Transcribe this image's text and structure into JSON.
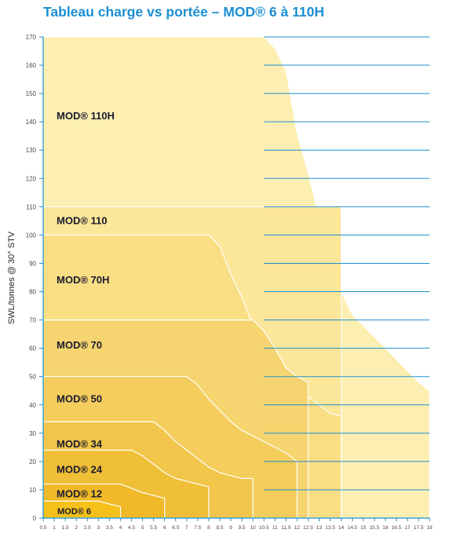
{
  "title": "Tableau charge vs portée – MOD® 6 à 110H",
  "chart_data": {
    "type": "area",
    "ylabel": "SWL/tonnes @ 30° STV",
    "xlabel": "",
    "xlim": [
      0.5,
      18
    ],
    "ylim": [
      0,
      170
    ],
    "y_ticks": [
      0,
      10,
      20,
      30,
      40,
      50,
      60,
      70,
      80,
      90,
      100,
      110,
      120,
      130,
      140,
      150,
      160,
      170
    ],
    "x_ticks": [
      "0.5",
      "1",
      "1.5",
      "2",
      "2.5",
      "3",
      "3.5",
      "4",
      "4.5",
      "5",
      "5.5",
      "6",
      "6.5",
      "7",
      "7.5",
      "8",
      "8.5",
      "9",
      "9.5",
      "10",
      "10.5",
      "11",
      "11.5",
      "12",
      "12.5",
      "13",
      "13.5",
      "14",
      "14.5",
      "15",
      "15.5",
      "16",
      "16.5",
      "17",
      "17.5",
      "18"
    ],
    "grid_from_x": 10.5,
    "series": [
      {
        "name": "MOD® 110H",
        "color": "#fdefb2",
        "label_y": 142,
        "points": [
          [
            0.5,
            170
          ],
          [
            10.5,
            170
          ],
          [
            11,
            166
          ],
          [
            11.5,
            158
          ],
          [
            12,
            136
          ],
          [
            12.5,
            122
          ],
          [
            13,
            106
          ],
          [
            13.5,
            92
          ],
          [
            14,
            80
          ],
          [
            14.5,
            72
          ],
          [
            15,
            68
          ],
          [
            15.5,
            64
          ],
          [
            16,
            60
          ],
          [
            16.5,
            56
          ],
          [
            17,
            52
          ],
          [
            17.5,
            48
          ],
          [
            18,
            45
          ],
          [
            18,
            0
          ],
          [
            0.5,
            0
          ]
        ]
      },
      {
        "name": "MOD® 110",
        "color": "#fbe69a",
        "label_y": 105,
        "points": [
          [
            0.5,
            110
          ],
          [
            14,
            110
          ],
          [
            14,
            0
          ],
          [
            0.5,
            0
          ]
        ]
      },
      {
        "name": "MOD® 70H",
        "color": "#f9de84",
        "label_y": 84,
        "points": [
          [
            0.5,
            100
          ],
          [
            8,
            100
          ],
          [
            8.5,
            96
          ],
          [
            9,
            86
          ],
          [
            9.5,
            78
          ],
          [
            10,
            68
          ],
          [
            10.5,
            58
          ],
          [
            11,
            52
          ],
          [
            11.5,
            49
          ],
          [
            12,
            46
          ],
          [
            12.5,
            43
          ],
          [
            13,
            40
          ],
          [
            13.5,
            37
          ],
          [
            14,
            36
          ],
          [
            14,
            0
          ],
          [
            0.5,
            0
          ]
        ]
      },
      {
        "name": "MOD® 70",
        "color": "#f6d570",
        "label_y": 61,
        "points": [
          [
            0.5,
            70
          ],
          [
            10,
            70
          ],
          [
            10.5,
            66
          ],
          [
            11,
            60
          ],
          [
            11.5,
            53
          ],
          [
            12,
            50
          ],
          [
            12.5,
            48
          ],
          [
            12.5,
            0
          ],
          [
            0.5,
            0
          ]
        ]
      },
      {
        "name": "MOD® 50",
        "color": "#f4cd5c",
        "label_y": 42,
        "points": [
          [
            0.5,
            50
          ],
          [
            7,
            50
          ],
          [
            7.5,
            47
          ],
          [
            8,
            42
          ],
          [
            8.5,
            38
          ],
          [
            9,
            34
          ],
          [
            9.5,
            31
          ],
          [
            10,
            29
          ],
          [
            10.5,
            27
          ],
          [
            11,
            25
          ],
          [
            11.5,
            23
          ],
          [
            12,
            20
          ],
          [
            12,
            0
          ],
          [
            0.5,
            0
          ]
        ]
      },
      {
        "name": "MOD® 34",
        "color": "#f2c64a",
        "label_y": 26,
        "points": [
          [
            0.5,
            34
          ],
          [
            5.5,
            34
          ],
          [
            6,
            31
          ],
          [
            6.5,
            27
          ],
          [
            7,
            24
          ],
          [
            7.5,
            21
          ],
          [
            8,
            18
          ],
          [
            8.5,
            16
          ],
          [
            9,
            15
          ],
          [
            9.5,
            14
          ],
          [
            10,
            14
          ],
          [
            10,
            0
          ],
          [
            0.5,
            0
          ]
        ]
      },
      {
        "name": "MOD® 24",
        "color": "#f0bf38",
        "label_y": 17,
        "points": [
          [
            0.5,
            24
          ],
          [
            4.5,
            24
          ],
          [
            5,
            22
          ],
          [
            5.5,
            19
          ],
          [
            6,
            16
          ],
          [
            6.5,
            14
          ],
          [
            7,
            13
          ],
          [
            7.5,
            12
          ],
          [
            8,
            11
          ],
          [
            8,
            0
          ],
          [
            0.5,
            0
          ]
        ]
      },
      {
        "name": "MOD® 12",
        "color": "#efb928",
        "label_y": 8.5,
        "points": [
          [
            0.5,
            12
          ],
          [
            4,
            12
          ],
          [
            4.5,
            10.5
          ],
          [
            5,
            9
          ],
          [
            5.5,
            8
          ],
          [
            6,
            7
          ],
          [
            6,
            0
          ],
          [
            0.5,
            0
          ]
        ]
      },
      {
        "name": "MOD® 6",
        "color": "#ffffff",
        "label_y": 2.5,
        "points": [
          [
            0.5,
            6
          ],
          [
            3,
            6
          ],
          [
            3.5,
            5
          ],
          [
            4,
            4
          ],
          [
            4,
            0
          ],
          [
            0.5,
            0
          ]
        ]
      }
    ],
    "colors": {
      "grid": "#1b8fd1",
      "axis": "#1b8fd1",
      "title": "#1b8fd1",
      "mod6_fill": "#f5c11a"
    }
  }
}
